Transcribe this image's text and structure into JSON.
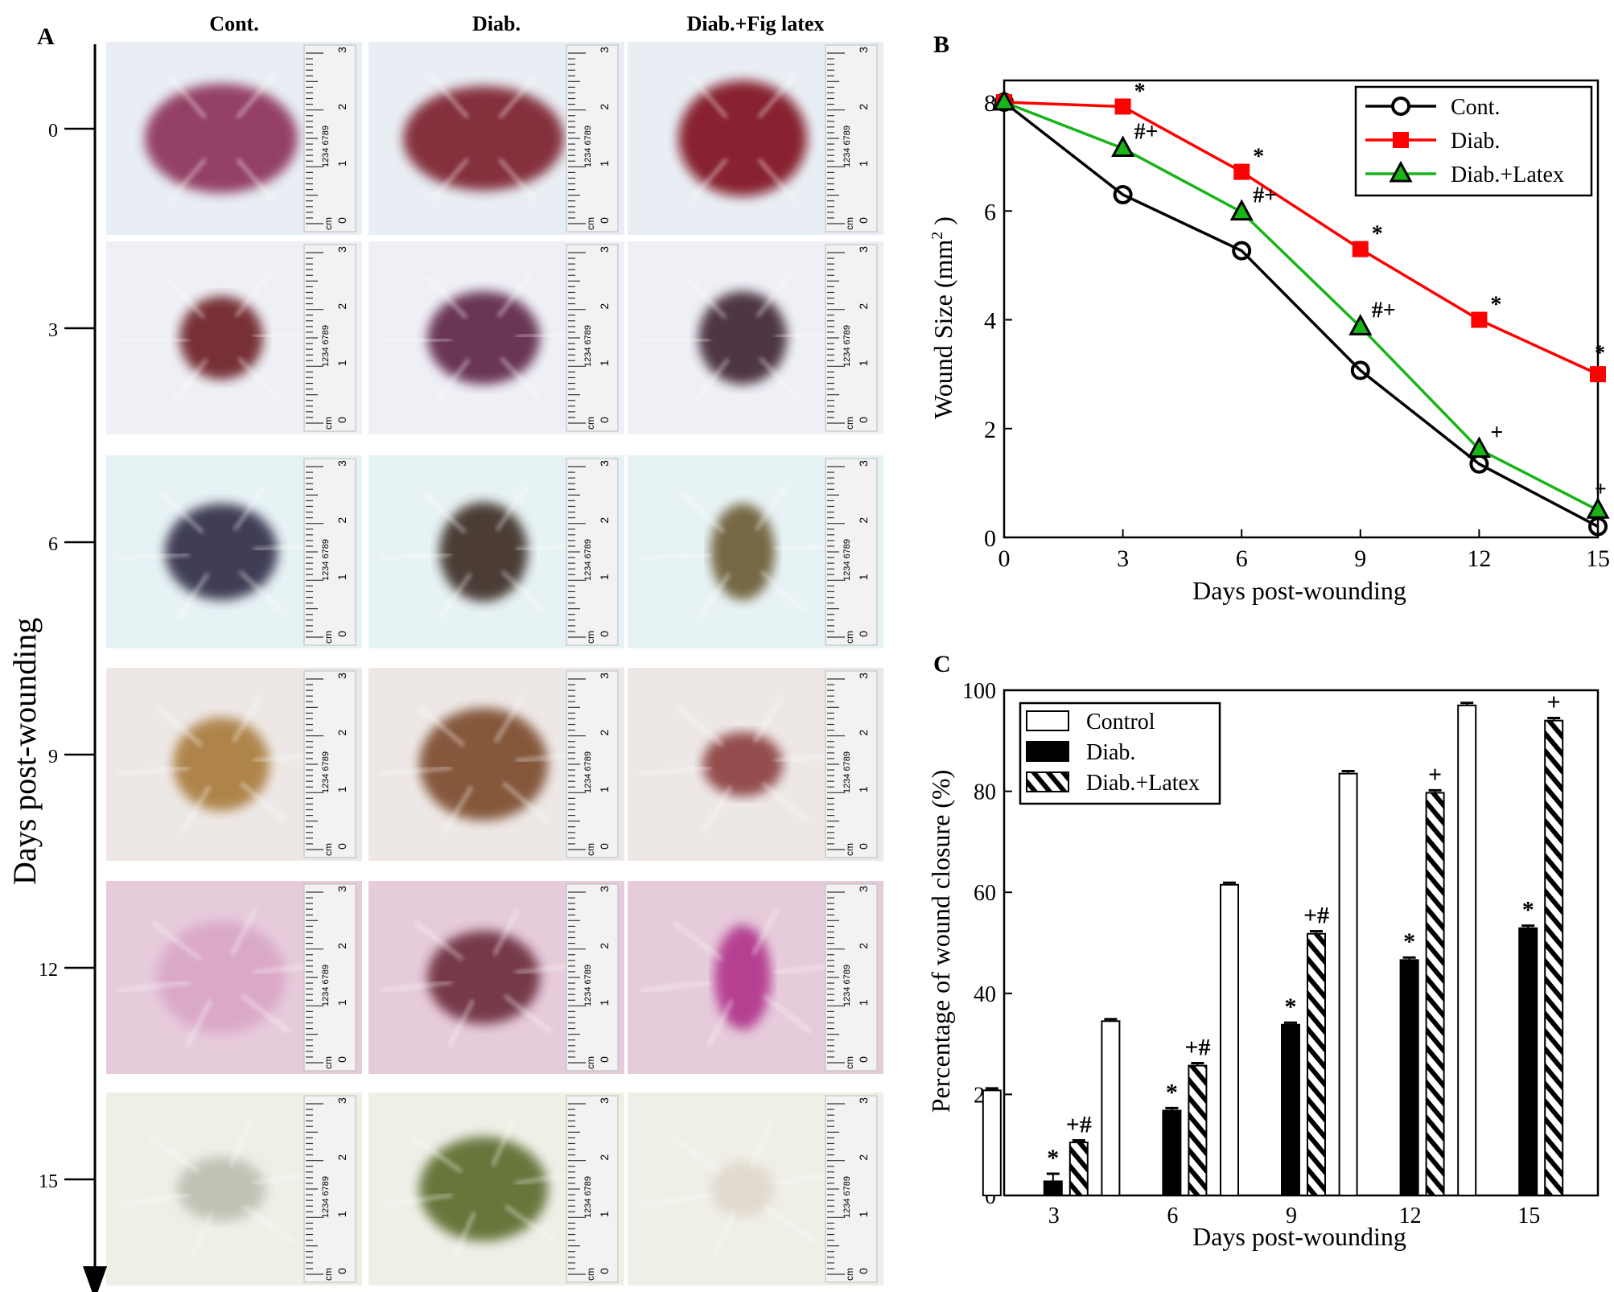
{
  "panelA": {
    "label": "A",
    "columns": [
      "Cont.",
      "Diab.",
      "Diab.+Fig latex"
    ],
    "days": [
      "0",
      "3",
      "6",
      "9",
      "12",
      "15"
    ],
    "axis_label": "Days post-wounding",
    "ruler": {
      "digits": "1234 6789",
      "nums": [
        "0",
        "1",
        "2",
        "3"
      ],
      "unit": "cm"
    },
    "colors": {
      "fur": [
        "#e8eef3",
        "#eef0f6",
        "#e7f2f5",
        "#ede8e6",
        "#e6cbdb",
        "#efefe8"
      ],
      "wounds": [
        [
          "#8b2f55",
          "#7a1c2c",
          "#7e0a1a"
        ],
        [
          "#6b1e24",
          "#5b2444",
          "#3e2233"
        ],
        [
          "#2f2a44",
          "#3a2a22",
          "#6b5a33"
        ],
        [
          "#a87a3a",
          "#7a4a2a",
          "#8a3c3c"
        ],
        [
          "#d9a6c6",
          "#6a2a3a",
          "#b0308a"
        ],
        [
          "#bdbdb0",
          "#5a6a2a",
          "#e0d8cc"
        ]
      ]
    }
  },
  "chart_data": [
    {
      "type": "line",
      "label": "B",
      "x": [
        0,
        3,
        6,
        9,
        12,
        15
      ],
      "xticks": [
        "0",
        "3",
        "6",
        "9",
        "12",
        "15"
      ],
      "yticks": [
        "0",
        "2",
        "4",
        "6",
        "8"
      ],
      "xlabel": "Days post-wounding",
      "ylabel": "Wound Size (mm",
      "ylabel_sup": "2",
      "ylabel_close": " )",
      "xlim": [
        0,
        15
      ],
      "ylim": [
        0,
        8.4
      ],
      "legend_position": "top-right",
      "series": [
        {
          "name": "Cont.",
          "color": "#000000",
          "marker": "circle",
          "values": [
            8.0,
            6.3,
            5.27,
            3.07,
            1.35,
            0.2
          ],
          "annotations": [
            "",
            "",
            "",
            "",
            "",
            ""
          ]
        },
        {
          "name": "Diab.",
          "color": "#ff0000",
          "marker": "square",
          "values": [
            8.0,
            7.92,
            6.72,
            5.3,
            4.0,
            3.0
          ],
          "annotations": [
            "",
            "*",
            "*",
            "*",
            "*",
            "*"
          ]
        },
        {
          "name": "Diab.+Latex",
          "color": "#18b418",
          "marker": "triangle",
          "values": [
            8.0,
            7.15,
            5.98,
            3.87,
            1.62,
            0.5
          ],
          "annotations": [
            "",
            "#+",
            "#+",
            "#+",
            "+",
            "+"
          ]
        }
      ]
    },
    {
      "type": "bar",
      "label": "C",
      "categories": [
        "3",
        "6",
        "9",
        "12",
        "15"
      ],
      "yticks": [
        "0",
        "20",
        "40",
        "60",
        "80",
        "100"
      ],
      "xlabel": "Days post-wounding",
      "ylabel": "Percentage of wound closure (%)",
      "ylim": [
        0,
        100
      ],
      "legend_position": "top-left",
      "series": [
        {
          "name": "Control",
          "fill": "white",
          "values": [
            20.8,
            34.5,
            61.5,
            83.5,
            97.0
          ],
          "errors": [
            0.4,
            0.4,
            0.4,
            0.5,
            0.5
          ],
          "annotations": [
            "",
            "",
            "",
            "",
            ""
          ]
        },
        {
          "name": "Diab.",
          "fill": "black",
          "values": [
            2.8,
            16.8,
            33.8,
            46.6,
            52.9
          ],
          "errors": [
            1.5,
            0.5,
            0.4,
            0.5,
            0.5
          ],
          "annotations": [
            "*",
            "*",
            "*",
            "*",
            "*"
          ]
        },
        {
          "name": "Diab.+Latex",
          "fill": "hatch",
          "values": [
            10.5,
            25.7,
            51.8,
            79.7,
            94.0
          ],
          "errors": [
            0.4,
            0.5,
            0.5,
            0.5,
            0.5
          ],
          "annotations": [
            "+#",
            "+#",
            "+#",
            "+",
            "+"
          ]
        }
      ]
    }
  ]
}
